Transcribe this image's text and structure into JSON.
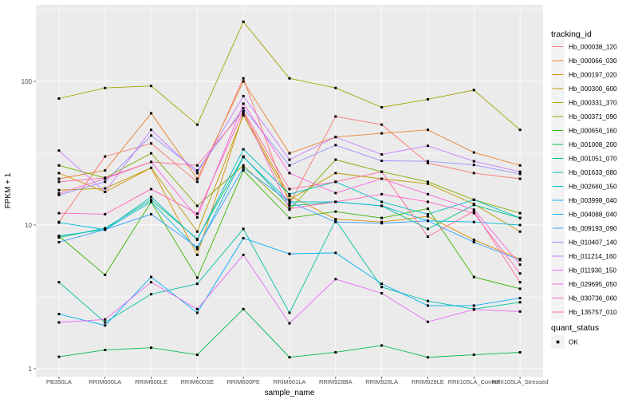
{
  "figure": {
    "bg": "#FFFFFF",
    "panel_bg": "#EBEBEB",
    "grid_color": "#FFFFFF",
    "tick_label_color": "#4D4D4D",
    "axis_title_color": "#000000",
    "point_color": "#000000"
  },
  "chart_data": {
    "type": "line",
    "title": "",
    "xlabel": "sample_name",
    "ylabel": "FPKM + 1",
    "y_scale": "log10",
    "grid": true,
    "legend_position": "right",
    "y_ticks": [
      1,
      10,
      100
    ],
    "y_minor_ticks": [
      3.162,
      31.62,
      316.2
    ],
    "ylim": [
      0.88,
      340
    ],
    "point_shape": "square",
    "categories": [
      "PB350LA",
      "RRIM600LA",
      "RRIM600LE",
      "RRIM600SE",
      "RRIM600PE",
      "RRIM901LA",
      "RRIM928BA",
      "RRIM928LA",
      "RRIM928LE",
      "RRII105LA_Control",
      "RRII105LA_Stressed"
    ],
    "series": [
      {
        "name": "Hb_000038_120",
        "color": "#F8766D",
        "values": [
          10.5,
          30,
          37,
          20,
          105,
          14,
          57,
          50,
          27,
          23,
          21
        ]
      },
      {
        "name": "Hb_000066_030",
        "color": "#EA8331",
        "values": [
          21,
          24,
          60,
          21,
          100,
          31.6,
          41,
          43.5,
          46,
          32,
          26
        ]
      },
      {
        "name": "Hb_000197_020",
        "color": "#D89000",
        "values": [
          23,
          17,
          25,
          6.2,
          60,
          16,
          11,
          10.5,
          11.5,
          7.9,
          5.8
        ]
      },
      {
        "name": "Hb_000300_600",
        "color": "#C09B00",
        "values": [
          17.5,
          18,
          25,
          9,
          58,
          15,
          23,
          21,
          19.4,
          14,
          9
        ]
      },
      {
        "name": "Hb_000331_370",
        "color": "#A3A500",
        "values": [
          76,
          90,
          93,
          50,
          260,
          105,
          90,
          66,
          75,
          87,
          46
        ]
      },
      {
        "name": "Hb_000371_090",
        "color": "#7CAE00",
        "values": [
          26,
          21.3,
          31.6,
          13.6,
          26,
          12.8,
          28.5,
          23.5,
          20,
          15,
          12.1
        ]
      },
      {
        "name": "Hb_000656_160",
        "color": "#39B600",
        "values": [
          8.4,
          4.5,
          14.5,
          4.3,
          24,
          11.2,
          12.4,
          11.2,
          13,
          4.35,
          3.6
        ]
      },
      {
        "name": "Hb_001008_200",
        "color": "#00BB4E",
        "values": [
          1.21,
          1.35,
          1.4,
          1.25,
          2.6,
          1.2,
          1.3,
          1.45,
          1.2,
          1.25,
          1.3
        ]
      },
      {
        "name": "Hb_001051_070",
        "color": "#00BF7D",
        "values": [
          8.2,
          9.5,
          15,
          8,
          30,
          13.6,
          14.5,
          13.6,
          9.4,
          13.8,
          11.2
        ]
      },
      {
        "name": "Hb_001633_080",
        "color": "#00C1A3",
        "values": [
          4.0,
          2.1,
          3.3,
          3.9,
          9.4,
          2.45,
          10.8,
          3.7,
          2.96,
          2.6,
          2.9
        ]
      },
      {
        "name": "Hb_002660_150",
        "color": "#00BFC4",
        "values": [
          8.4,
          9.3,
          15.7,
          7.9,
          33.7,
          16.4,
          20,
          14.5,
          11.9,
          15,
          11.2
        ]
      },
      {
        "name": "Hb_003998_040",
        "color": "#00BAE0",
        "values": [
          10.4,
          9.3,
          14.5,
          6.8,
          29.7,
          14.5,
          14.5,
          13.6,
          10.7,
          10.5,
          10
        ]
      },
      {
        "name": "Hb_004088_040",
        "color": "#00B0F6",
        "values": [
          2.4,
          2.0,
          4.35,
          2.45,
          8.1,
          6.3,
          6.4,
          3.9,
          2.75,
          2.75,
          3.1
        ]
      },
      {
        "name": "Hb_009193_090",
        "color": "#35A2FF",
        "values": [
          7.6,
          9.3,
          11.9,
          7.0,
          25,
          14.5,
          10.5,
          10.3,
          10.7,
          7.6,
          5.7
        ]
      },
      {
        "name": "Hb_010407_140",
        "color": "#9590FF",
        "values": [
          16.2,
          20,
          42,
          24,
          65,
          26,
          36,
          28,
          27.8,
          26.2,
          22.7
        ]
      },
      {
        "name": "Hb_011214_160",
        "color": "#C77CFF",
        "values": [
          33,
          17,
          46,
          23,
          79,
          28.5,
          41,
          31,
          35.6,
          27.8,
          23.5
        ]
      },
      {
        "name": "Hb_011930_150",
        "color": "#E76BF3",
        "values": [
          2.1,
          2.2,
          4.0,
          2.6,
          6.2,
          2.07,
          4.2,
          3.35,
          2.12,
          2.58,
          2.5
        ]
      },
      {
        "name": "Hb_029695_050",
        "color": "#FA62DB",
        "values": [
          16.6,
          21,
          27.5,
          11.3,
          70,
          23,
          16.7,
          21,
          16.4,
          12.8,
          5.3
        ]
      },
      {
        "name": "Hb_030736_060",
        "color": "#FF62BC",
        "values": [
          12.1,
          11.9,
          17.8,
          12,
          62,
          13,
          14.5,
          16.4,
          14.5,
          12.1,
          4.6
        ]
      },
      {
        "name": "Hb_135757_010",
        "color": "#FF6A98",
        "values": [
          20,
          21.3,
          27.5,
          26,
          62,
          17.8,
          20,
          23.5,
          8.3,
          12.5,
          4.0
        ]
      }
    ],
    "legend": {
      "color_title": "tracking_id",
      "shape_title": "quant_status",
      "shape_items": [
        {
          "label": "OK",
          "color": "#000000"
        }
      ]
    }
  }
}
